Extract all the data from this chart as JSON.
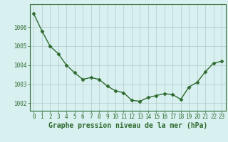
{
  "x": [
    0,
    1,
    2,
    3,
    4,
    5,
    6,
    7,
    8,
    9,
    10,
    11,
    12,
    13,
    14,
    15,
    16,
    17,
    18,
    19,
    20,
    21,
    22,
    23
  ],
  "y": [
    1006.7,
    1005.8,
    1005.0,
    1004.6,
    1004.0,
    1003.6,
    1003.25,
    1003.35,
    1003.25,
    1002.9,
    1002.65,
    1002.55,
    1002.15,
    1002.1,
    1002.3,
    1002.4,
    1002.5,
    1002.45,
    1002.2,
    1002.85,
    1003.1,
    1003.65,
    1004.1,
    1004.2
  ],
  "line_color": "#2d6a2d",
  "marker": "D",
  "markersize": 2.5,
  "linewidth": 1.0,
  "bg_color": "#d8f0f0",
  "grid_color": "#b0c8c8",
  "plot_bg": "#d8f0f0",
  "xlabel": "Graphe pression niveau de la mer (hPa)",
  "xlabel_color": "#2d6a2d",
  "xlabel_fontsize": 7,
  "ylabel_ticks": [
    1002,
    1003,
    1004,
    1005,
    1006
  ],
  "ylim": [
    1001.6,
    1007.2
  ],
  "xlim": [
    -0.5,
    23.5
  ],
  "xtick_labels": [
    "0",
    "1",
    "2",
    "3",
    "4",
    "5",
    "6",
    "7",
    "8",
    "9",
    "10",
    "11",
    "12",
    "13",
    "14",
    "15",
    "16",
    "17",
    "18",
    "19",
    "20",
    "21",
    "22",
    "23"
  ],
  "tick_fontsize": 5.5,
  "tick_color": "#2d6a2d",
  "border_color": "#2d6a2d",
  "spine_linewidth": 0.8
}
